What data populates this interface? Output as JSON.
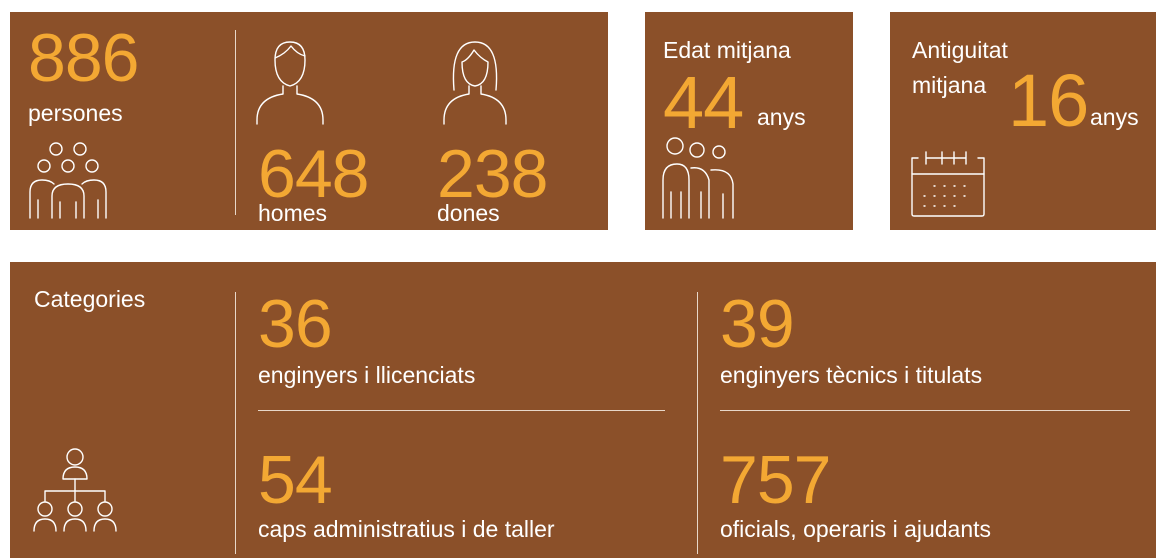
{
  "staff": {
    "total": {
      "value": 886,
      "label": "persones"
    },
    "men": {
      "value": 648,
      "label": "homes"
    },
    "women": {
      "value": 238,
      "label": "dones"
    }
  },
  "age": {
    "title": "Edat mitjana",
    "value": 44,
    "unit": "anys"
  },
  "seniority": {
    "title_lines": [
      "Antiguitat",
      "mitjana"
    ],
    "value": 16,
    "unit": "anys"
  },
  "categories": {
    "title": "Categories",
    "items": [
      {
        "value": 36,
        "label": "enginyers i llicenciats"
      },
      {
        "value": 39,
        "label": "enginyers tècnics i titulats"
      },
      {
        "value": 54,
        "label": "caps administratius i de taller"
      },
      {
        "value": 757,
        "label": "oficials, operaris i ajudants"
      }
    ]
  }
}
